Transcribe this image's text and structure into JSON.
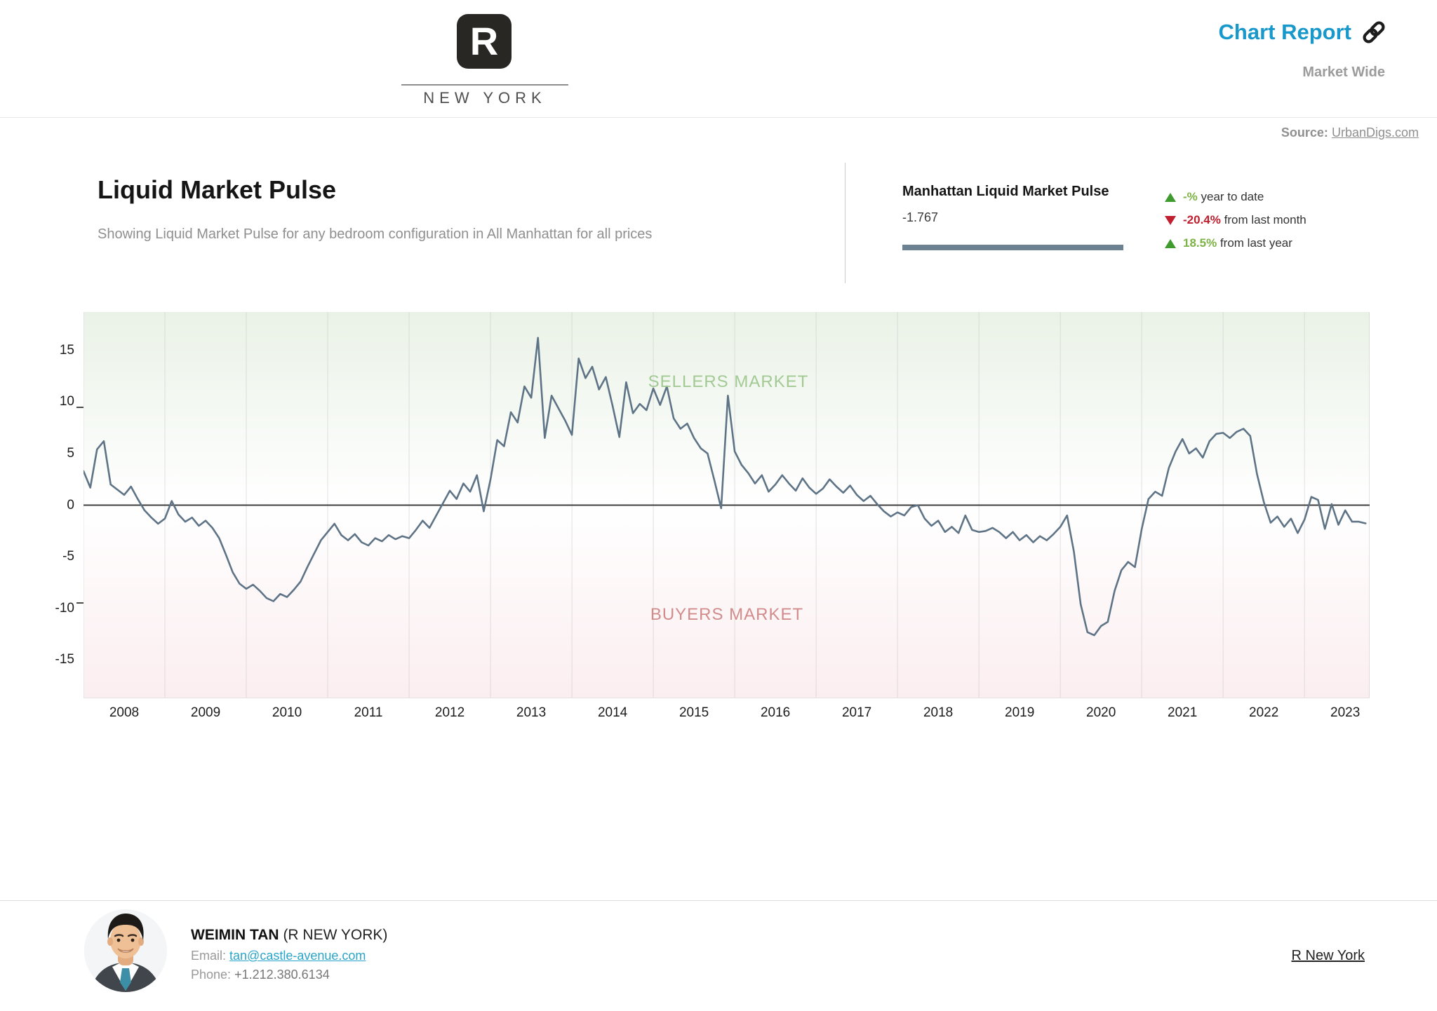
{
  "header": {
    "logo_letter": "R",
    "logo_city": "NEW YORK",
    "report_title": "Chart Report",
    "report_scope": "Market Wide"
  },
  "source": {
    "label": "Source:",
    "link_text": "UrbanDigs.com"
  },
  "intro": {
    "title": "Liquid Market Pulse",
    "subtitle": "Showing Liquid Market Pulse for any bedroom configuration in All Manhattan for all prices"
  },
  "stats": {
    "name": "Manhattan Liquid Market Pulse",
    "current_value": "-1.767",
    "legend_color": "#6c8191",
    "items": [
      {
        "direction": "up",
        "value": "-%",
        "label": "year to date",
        "value_color": "#7db345",
        "arrow_color": "#3f9b2e"
      },
      {
        "direction": "down",
        "value": "-20.4%",
        "label": "from last month",
        "value_color": "#c01f2f",
        "arrow_color": "#c01f2f"
      },
      {
        "direction": "up",
        "value": "18.5%",
        "label": "from last year",
        "value_color": "#7db345",
        "arrow_color": "#3f9b2e"
      }
    ]
  },
  "chart_data": {
    "type": "line",
    "title": "Liquid Market Pulse",
    "xlabel": "",
    "ylabel": "",
    "x_domain": [
      2008,
      2023.8
    ],
    "ylim": [
      -18.7,
      18.7
    ],
    "y_ticks": [
      15,
      10,
      5,
      0,
      -5,
      -10,
      -15
    ],
    "y_minor_ticks": [
      9.5,
      -9.5
    ],
    "x_ticks": [
      2008,
      2009,
      2010,
      2011,
      2012,
      2013,
      2014,
      2015,
      2016,
      2017,
      2018,
      2019,
      2020,
      2021,
      2022,
      2023
    ],
    "grid": "vertical-years",
    "legend_position": "none",
    "zones": {
      "sellers_label": "SELLERS MARKET",
      "sellers_color": "#a3ca95",
      "sellers_bg": "#eaf2e7",
      "buyers_label": "BUYERS MARKET",
      "buyers_color": "#d28c8c",
      "buyers_bg": "#fbeef0"
    },
    "series": [
      {
        "name": "Manhattan Liquid Market Pulse",
        "color": "#5e7486",
        "start": "2008-01",
        "frequency": "monthly",
        "values": [
          3.3,
          1.7,
          5.4,
          6.2,
          2.0,
          1.5,
          1.0,
          1.8,
          0.6,
          -0.5,
          -1.2,
          -1.8,
          -1.3,
          0.4,
          -0.9,
          -1.6,
          -1.2,
          -2.0,
          -1.5,
          -2.2,
          -3.2,
          -4.8,
          -6.5,
          -7.6,
          -8.1,
          -7.7,
          -8.3,
          -9.0,
          -9.3,
          -8.6,
          -8.9,
          -8.2,
          -7.4,
          -6.0,
          -4.7,
          -3.4,
          -2.6,
          -1.8,
          -2.9,
          -3.4,
          -2.8,
          -3.6,
          -3.9,
          -3.2,
          -3.5,
          -2.9,
          -3.3,
          -3.0,
          -3.2,
          -2.4,
          -1.5,
          -2.2,
          -1.0,
          0.2,
          1.4,
          0.6,
          2.1,
          1.3,
          2.9,
          -0.6,
          2.5,
          6.3,
          5.7,
          9.0,
          8.0,
          11.5,
          10.4,
          16.2,
          6.5,
          10.6,
          9.4,
          8.2,
          6.8,
          14.2,
          12.3,
          13.4,
          11.2,
          12.4,
          9.6,
          6.6,
          11.9,
          8.9,
          9.8,
          9.2,
          11.3,
          9.7,
          11.5,
          8.4,
          7.4,
          7.9,
          6.5,
          5.5,
          5.0,
          2.4,
          -0.3,
          10.6,
          5.2,
          3.9,
          3.1,
          2.1,
          2.9,
          1.3,
          2.0,
          2.9,
          2.1,
          1.4,
          2.6,
          1.7,
          1.1,
          1.6,
          2.5,
          1.8,
          1.2,
          1.9,
          1.0,
          0.4,
          0.9,
          0.1,
          -0.6,
          -1.1,
          -0.7,
          -1.0,
          -0.2,
          0.0,
          -1.3,
          -2.0,
          -1.5,
          -2.6,
          -2.1,
          -2.7,
          -1.0,
          -2.4,
          -2.6,
          -2.5,
          -2.2,
          -2.6,
          -3.2,
          -2.6,
          -3.4,
          -2.9,
          -3.6,
          -3.0,
          -3.4,
          -2.8,
          -2.1,
          -1.0,
          -4.5,
          -9.6,
          -12.3,
          -12.6,
          -11.7,
          -11.3,
          -8.3,
          -6.3,
          -5.5,
          -6.0,
          -2.3,
          0.6,
          1.3,
          0.9,
          3.6,
          5.2,
          6.4,
          5.0,
          5.5,
          4.6,
          6.2,
          6.9,
          7.0,
          6.5,
          7.1,
          7.4,
          6.7,
          3.0,
          0.3,
          -1.7,
          -1.1,
          -2.1,
          -1.3,
          -2.7,
          -1.4,
          0.8,
          0.5,
          -2.3,
          0.1,
          -1.9,
          -0.5,
          -1.6,
          -1.6,
          -1.767
        ]
      }
    ]
  },
  "footer": {
    "agent_name": "WEIMIN TAN",
    "agent_suffix": "(R NEW YORK)",
    "email_label": "Email:",
    "email": "tan@castle-avenue.com",
    "phone_label": "Phone:",
    "phone": "+1.212.380.6134",
    "brokerage_link": "R New York"
  }
}
